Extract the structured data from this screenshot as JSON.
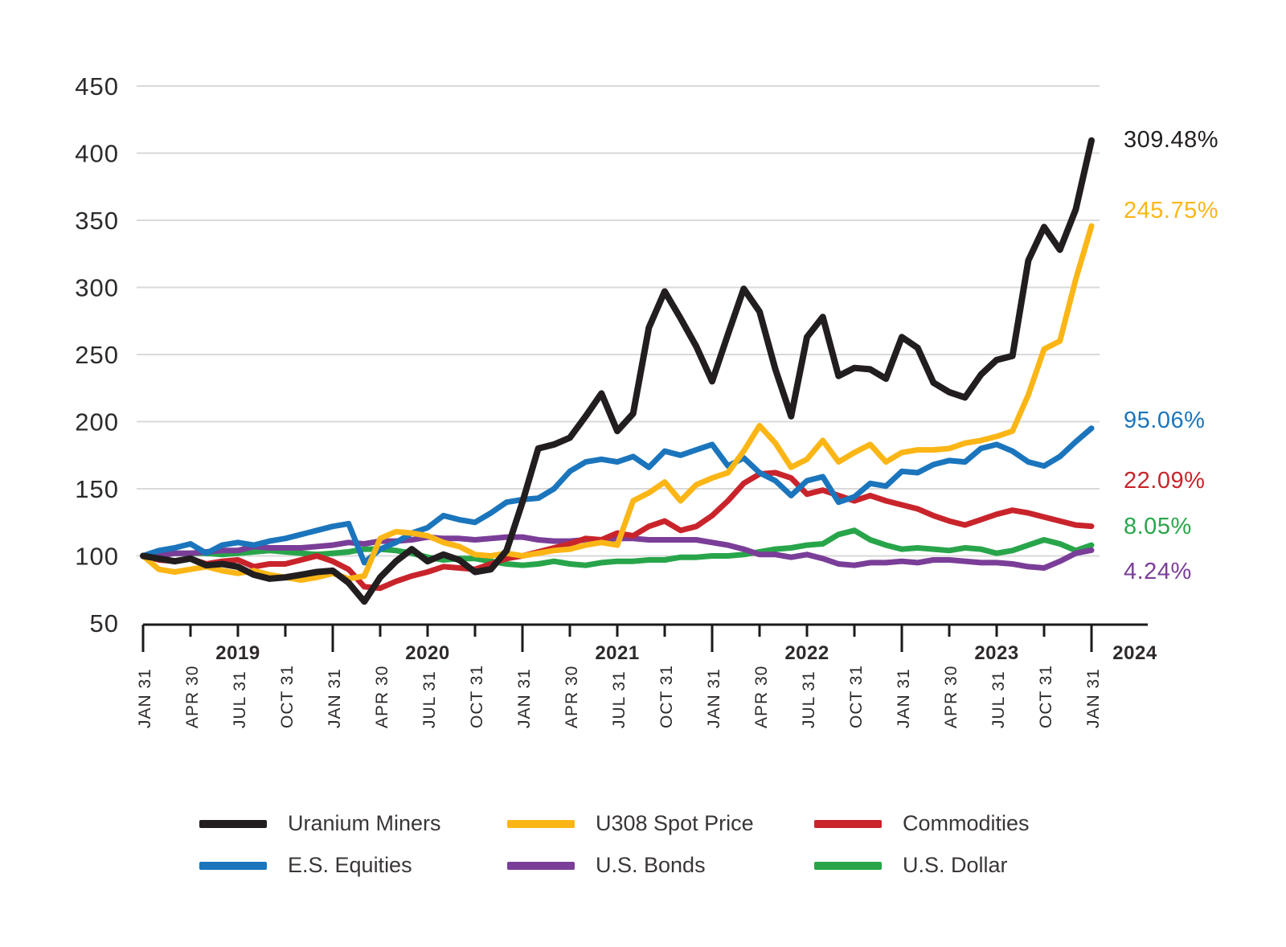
{
  "chart_data": {
    "type": "line",
    "title": "",
    "grid": "horizontal",
    "legend_position": "bottom",
    "y_ticks": [
      450,
      400,
      350,
      300,
      250,
      200,
      150,
      100,
      50
    ],
    "ylim": [
      50,
      450
    ],
    "x_tick_labels": [
      "JAN 31",
      "APR 30",
      "JUL 31",
      "OCT 31",
      "JAN 31",
      "APR 30",
      "JUL 31",
      "OCT 31",
      "JAN 31",
      "APR 30",
      "JUL 31",
      "OCT 31",
      "JAN 31",
      "APR 30",
      "JUL 31",
      "OCT 31",
      "JAN 31",
      "APR 30",
      "JUL 31",
      "OCT 31",
      "JAN 31"
    ],
    "year_labels": [
      "2019",
      "2020",
      "2021",
      "2022",
      "2023",
      "2024"
    ],
    "x_unit": "month-end, Jan 2019 through Jan 2024, indexed to 100",
    "series": [
      {
        "name": "Uranium Miners",
        "color": "#221e1f",
        "end_label": "309.48%",
        "values": [
          100,
          98,
          96,
          98,
          93,
          94,
          92,
          86,
          83,
          84,
          86,
          88,
          89,
          80,
          66,
          84,
          96,
          105,
          96,
          101,
          97,
          88,
          90,
          104,
          140,
          180,
          183,
          188,
          204,
          221,
          193,
          206,
          270,
          297,
          277,
          256,
          230,
          265,
          299,
          282,
          239,
          204,
          263,
          278,
          234,
          240,
          239,
          232,
          263,
          255,
          229,
          222,
          218,
          235,
          246,
          249,
          320,
          345,
          328,
          358,
          409.48
        ]
      },
      {
        "name": "U308 Spot Price",
        "color": "#fbb616",
        "end_label": "245.75%",
        "values": [
          100,
          90,
          88,
          90,
          92,
          89,
          87,
          89,
          86,
          84,
          82,
          84,
          87,
          83,
          85,
          113,
          118,
          117,
          115,
          110,
          107,
          101,
          100,
          102,
          100,
          102,
          104,
          105,
          108,
          110,
          108,
          141,
          147,
          155,
          141,
          153,
          158,
          162,
          178,
          197,
          184,
          166,
          172,
          186,
          170,
          177,
          183,
          170,
          177,
          179,
          179,
          180,
          184,
          186,
          189,
          193,
          220,
          254,
          260,
          306,
          345.75
        ]
      },
      {
        "name": "Commodities",
        "color": "#c9242b",
        "end_label": "22.09%",
        "values": [
          100,
          97,
          96,
          98,
          94,
          96,
          97,
          92,
          94,
          94,
          97,
          100,
          96,
          90,
          77,
          76,
          81,
          85,
          88,
          92,
          91,
          90,
          94,
          98,
          100,
          103,
          106,
          109,
          113,
          112,
          117,
          115,
          122,
          126,
          119,
          122,
          130,
          141,
          154,
          161,
          162,
          158,
          146,
          149,
          145,
          141,
          145,
          141,
          138,
          135,
          130,
          126,
          123,
          127,
          131,
          134,
          132,
          129,
          126,
          123,
          122.09
        ]
      },
      {
        "name": "E.S. Equities",
        "color": "#1b75bc",
        "end_label": "95.06%",
        "values": [
          100,
          104,
          106,
          109,
          102,
          108,
          110,
          108,
          111,
          113,
          116,
          119,
          122,
          124,
          95,
          105,
          110,
          117,
          121,
          130,
          127,
          125,
          132,
          140,
          142,
          143,
          150,
          163,
          170,
          172,
          170,
          174,
          166,
          178,
          175,
          179,
          183,
          167,
          173,
          162,
          156,
          145,
          156,
          159,
          140,
          144,
          154,
          152,
          163,
          162,
          168,
          171,
          170,
          180,
          183,
          178,
          170,
          167,
          174,
          185,
          195.06
        ]
      },
      {
        "name": "U.S. Bonds",
        "color": "#7a3e98",
        "end_label": "4.24%",
        "values": [
          100,
          100,
          102,
          102,
          103,
          104,
          104,
          107,
          106,
          106,
          106,
          107,
          108,
          110,
          109,
          111,
          111,
          112,
          114,
          113,
          113,
          112,
          113,
          114,
          114,
          112,
          111,
          111,
          112,
          112,
          113,
          113,
          112,
          112,
          112,
          112,
          110,
          108,
          105,
          101,
          101,
          99,
          101,
          98,
          94,
          93,
          95,
          95,
          96,
          95,
          97,
          97,
          96,
          95,
          95,
          94,
          92,
          91,
          96,
          102,
          104.24
        ]
      },
      {
        "name": "U.S. Dollar",
        "color": "#28a54a",
        "end_label": "8.05%",
        "values": [
          100,
          101,
          102,
          102,
          102,
          101,
          102,
          103,
          104,
          103,
          102,
          101,
          102,
          103,
          105,
          105,
          104,
          102,
          99,
          97,
          98,
          98,
          96,
          94,
          93,
          94,
          96,
          94,
          93,
          95,
          96,
          96,
          97,
          97,
          99,
          99,
          100,
          100,
          101,
          103,
          105,
          106,
          108,
          109,
          116,
          119,
          112,
          108,
          105,
          106,
          105,
          104,
          106,
          105,
          102,
          104,
          108,
          112,
          109,
          104,
          108.05
        ]
      }
    ],
    "end_label_order": [
      {
        "series": 0,
        "text": "309.48%"
      },
      {
        "series": 1,
        "text": "245.75%"
      },
      {
        "series": 3,
        "text": "95.06%"
      },
      {
        "series": 2,
        "text": "22.09%"
      },
      {
        "series": 5,
        "text": "8.05%"
      },
      {
        "series": 4,
        "text": "4.24%"
      }
    ]
  },
  "legend": {
    "items": [
      {
        "label": "Uranium Miners"
      },
      {
        "label": "U308 Spot Price"
      },
      {
        "label": "Commodities"
      },
      {
        "label": "E.S. Equities"
      },
      {
        "label": "U.S. Bonds"
      },
      {
        "label": "U.S. Dollar"
      }
    ]
  },
  "colors": {
    "grid": "#d9d9d9",
    "axis": "#1a1a1a",
    "tick_text": "#2e2a2b",
    "y_label_text": "#2e2a2b"
  }
}
